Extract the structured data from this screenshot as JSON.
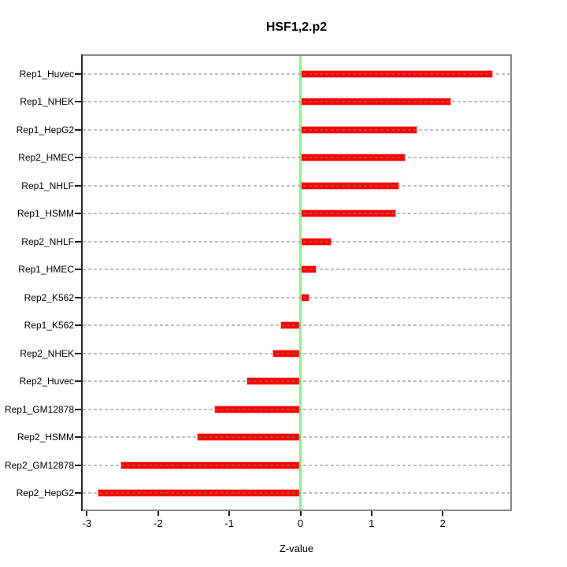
{
  "title": "HSF1,2.p2",
  "chart_data": {
    "type": "bar",
    "orientation": "horizontal",
    "title": "HSF1,2.p2",
    "xlabel": "Z-value",
    "ylabel": "",
    "categories": [
      "Rep1_Huvec",
      "Rep1_NHEK",
      "Rep1_HepG2",
      "Rep2_HMEC",
      "Rep1_NHLF",
      "Rep1_HSMM",
      "Rep2_NHLF",
      "Rep1_HMEC",
      "Rep2_K562",
      "Rep1_K562",
      "Rep2_NHEK",
      "Rep2_Huvec",
      "Rep1_GM12878",
      "Rep2_HSMM",
      "Rep2_GM12878",
      "Rep2_HepG2"
    ],
    "values": [
      2.71,
      2.12,
      1.64,
      1.48,
      1.39,
      1.35,
      0.44,
      0.23,
      0.13,
      -0.28,
      -0.39,
      -0.76,
      -1.21,
      -1.46,
      -2.53,
      -2.85
    ],
    "x_ticks": [
      -3,
      -2,
      -1,
      0,
      1,
      2
    ],
    "xlim": [
      -3.06,
      2.95
    ],
    "grid": "horizontal dashed line at each bar row, drawn over bars",
    "zero_reference_line": 0,
    "legend": null,
    "colors": {
      "bar": "#FF0000",
      "bar_border": "#FFB0B0",
      "zero_line": "#90EE90",
      "box_border": "#8A8A8A",
      "axis_line": "#262626",
      "tick": "#1A1A1A",
      "grid": "#BFBFBF",
      "text": "#000000",
      "background": "#FFFFFF"
    }
  }
}
